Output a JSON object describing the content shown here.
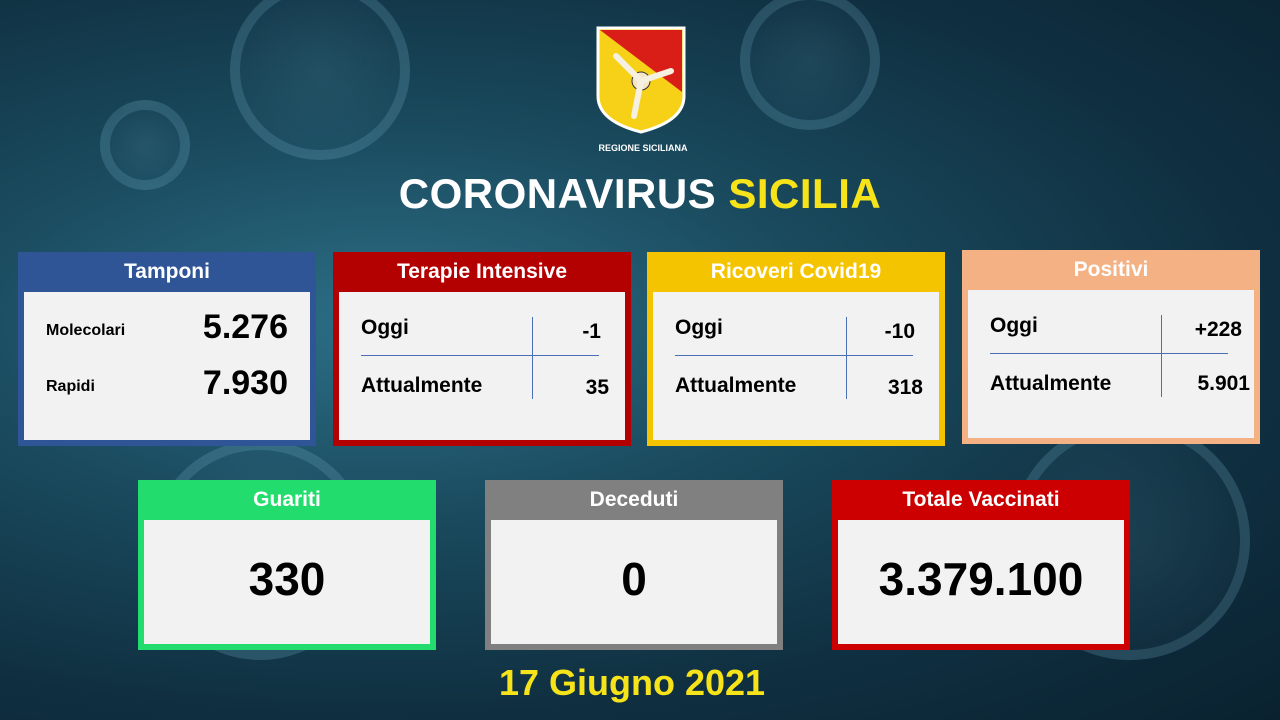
{
  "logo": {
    "caption": "REGIONE SICILIANA",
    "colors": [
      "#d91e18",
      "#f7d117"
    ]
  },
  "title": {
    "part1": "CORONAVIRUS",
    "part2": "SICILIA"
  },
  "tamponi": {
    "title": "Tamponi",
    "color": "#2f5597",
    "rows": [
      {
        "label": "Molecolari",
        "value": "5.276"
      },
      {
        "label": "Rapidi",
        "value": "7.930"
      }
    ]
  },
  "terapie": {
    "title": "Terapie Intensive",
    "color": "#b30000",
    "oggi_label": "Oggi",
    "oggi": "-1",
    "attualmente_label": "Attualmente",
    "attualmente": "35"
  },
  "ricoveri": {
    "title": "Ricoveri Covid19",
    "color": "#f5c400",
    "oggi_label": "Oggi",
    "oggi": "-10",
    "attualmente_label": "Attualmente",
    "attualmente": "318"
  },
  "positivi": {
    "title": "Positivi",
    "color": "#f4b183",
    "oggi_label": "Oggi",
    "oggi": "+228",
    "attualmente_label": "Attualmente",
    "attualmente": "5.901"
  },
  "guariti": {
    "title": "Guariti",
    "value": "330",
    "color": "#22dd6e"
  },
  "deceduti": {
    "title": "Deceduti",
    "value": "0",
    "color": "#808080"
  },
  "vaccinati": {
    "title": "Totale Vaccinati",
    "value": "3.379.100",
    "color": "#cc0000"
  },
  "date": "17 Giugno 2021"
}
